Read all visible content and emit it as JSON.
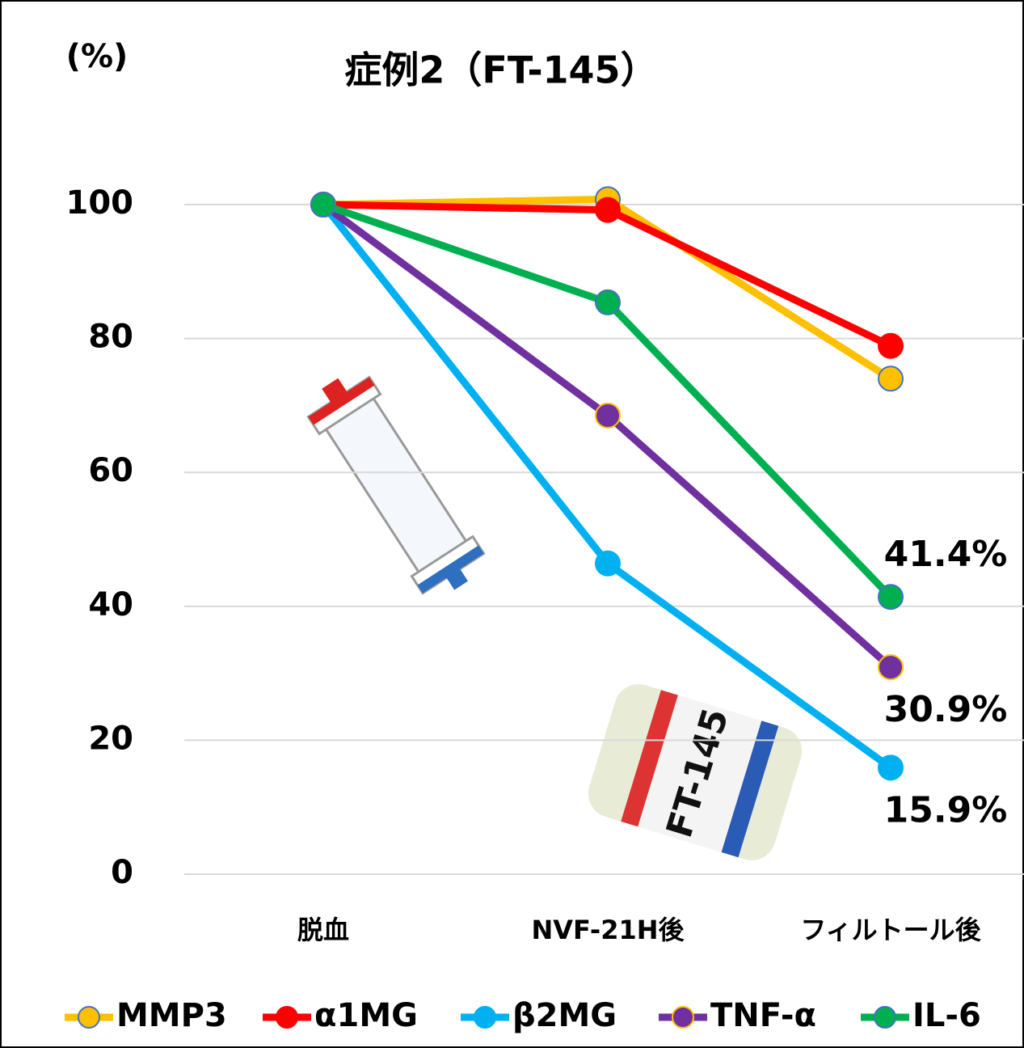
{
  "chart_data": {
    "type": "line",
    "title": "症例2（FT-145）",
    "y_axis_label": "(%)",
    "categories": [
      "脱血",
      "NVF-21H後",
      "フィルトール後"
    ],
    "ylim": [
      0,
      100
    ],
    "yticks": [
      0,
      20,
      40,
      60,
      80,
      100
    ],
    "grid": true,
    "legend": "bottom",
    "series": [
      {
        "name": "MMP3",
        "color": "#ffc000",
        "marker_edge": "#4472c4",
        "values": [
          100,
          100.8,
          74.0
        ]
      },
      {
        "name": "α1MG",
        "color": "#ff0000",
        "marker_edge": "#ff0000",
        "values": [
          100,
          99.2,
          78.9
        ]
      },
      {
        "name": "β2MG",
        "color": "#00b0f0",
        "marker_edge": "#00b0f0",
        "values": [
          100,
          46.4,
          15.9
        ],
        "value_labels": [
          null,
          null,
          "15.9%"
        ]
      },
      {
        "name": "TNF-α",
        "color": "#7030a0",
        "marker_edge": "#ffc000",
        "values": [
          100,
          68.5,
          30.9
        ],
        "value_labels": [
          null,
          null,
          "30.9%"
        ]
      },
      {
        "name": "IL-6",
        "color": "#00b050",
        "marker_edge": "#4472c4",
        "values": [
          100,
          85.4,
          41.4
        ],
        "value_labels": [
          null,
          null,
          "41.4%"
        ]
      }
    ]
  }
}
